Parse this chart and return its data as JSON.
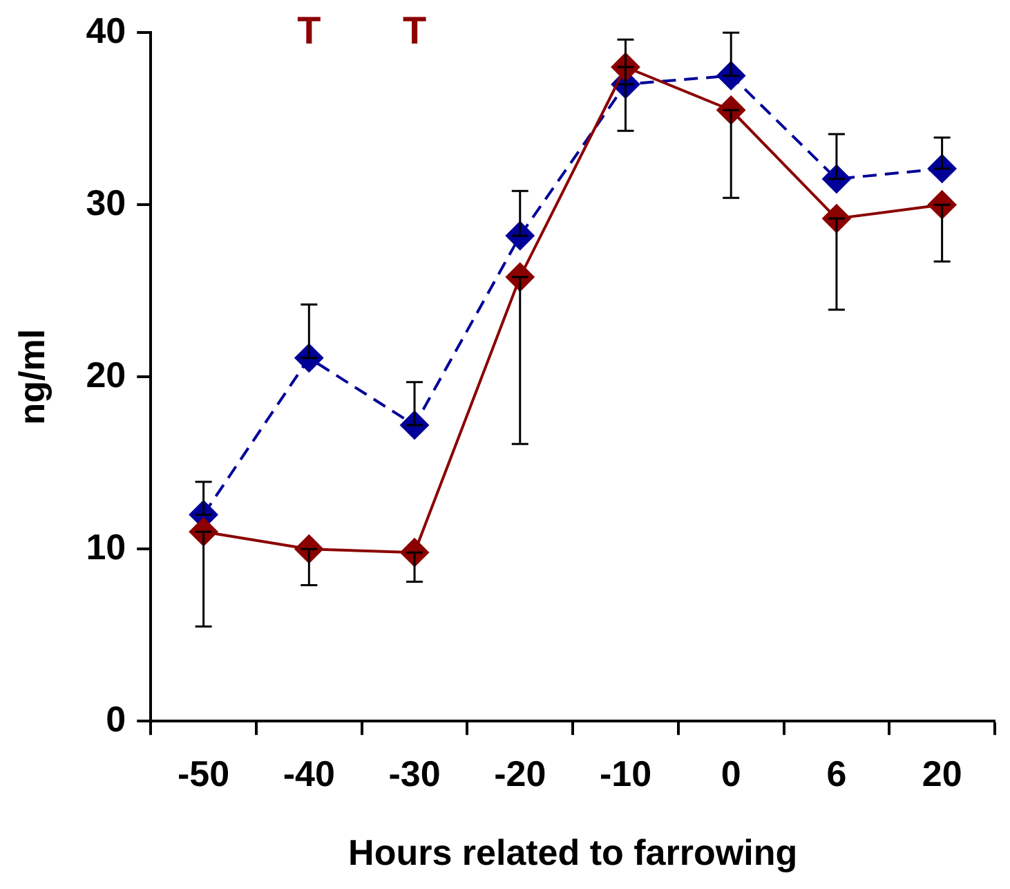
{
  "chart_data": {
    "type": "line",
    "xlabel": "Hours related to farrowing",
    "ylabel": "ng/ml",
    "categories": [
      "-50",
      "-40",
      "-30",
      "-20",
      "-10",
      "0",
      "6",
      "20"
    ],
    "ylim": [
      0,
      40
    ],
    "yticks": [
      0,
      10,
      20,
      30,
      40
    ],
    "grid": false,
    "legend": false,
    "marker": "diamond",
    "series": [
      {
        "color": "#8b0000",
        "line_style": "solid",
        "values": [
          11,
          10,
          9.8,
          25.8,
          38,
          35.5,
          29.2,
          30
        ],
        "errors": [
          [
            5.5,
            11
          ],
          [
            7.9,
            10
          ],
          [
            8.1,
            9.8
          ],
          [
            16.1,
            25.8
          ],
          [
            34.3,
            38
          ],
          [
            30.4,
            35.5
          ],
          [
            23.9,
            29.2
          ],
          [
            26.7,
            30
          ]
        ]
      },
      {
        "color": "#000099",
        "line_style": "dashed",
        "values": [
          12,
          21.1,
          17.2,
          28.2,
          37,
          37.5,
          31.5,
          32.1
        ],
        "errors": [
          [
            12,
            13.9
          ],
          [
            21.1,
            24.2
          ],
          [
            17.2,
            19.7
          ],
          [
            28.2,
            30.8
          ],
          [
            37,
            39.6
          ],
          [
            37.5,
            40
          ],
          [
            31.5,
            34.1
          ],
          [
            32.1,
            33.9
          ]
        ]
      }
    ],
    "annotations": [
      "T",
      "T"
    ]
  }
}
